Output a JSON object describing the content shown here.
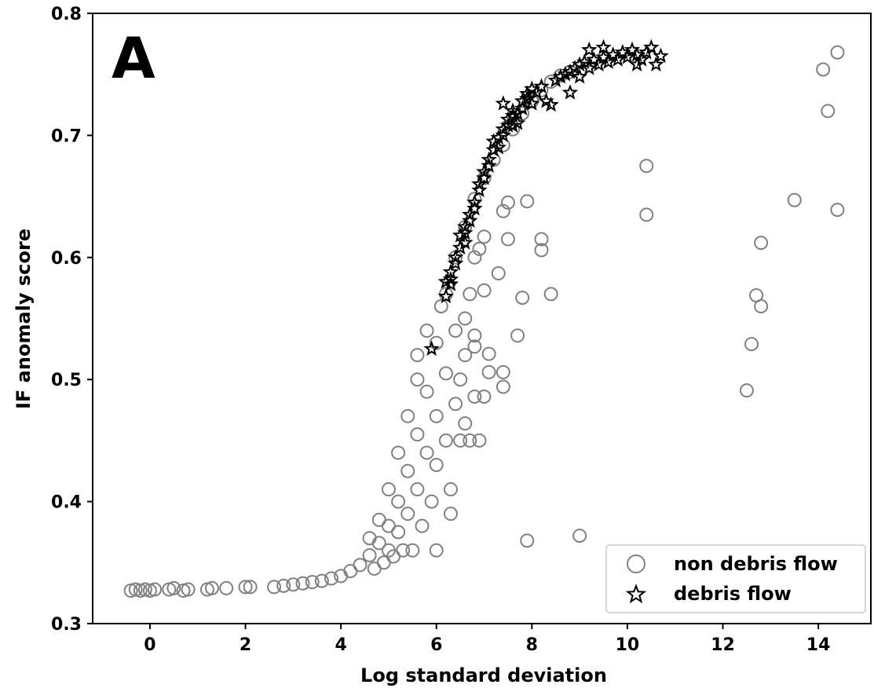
{
  "colors": {
    "non_debris": "#808080",
    "debris": "#000000"
  },
  "chart_data": {
    "type": "scatter",
    "title": "",
    "panel_label": "A",
    "xlabel": "Log standard deviation",
    "ylabel": "IF anomaly score",
    "xlim": [
      -1.2,
      15.1
    ],
    "ylim": [
      0.3,
      0.8
    ],
    "xticks": [
      "0",
      "2",
      "4",
      "6",
      "8",
      "10",
      "12",
      "14"
    ],
    "yticks": [
      "0.3",
      "0.4",
      "0.5",
      "0.6",
      "0.7",
      "0.8"
    ],
    "grid": false,
    "legend_position": "lower-right",
    "legend": [
      "non debris flow",
      "debris flow"
    ],
    "series": [
      {
        "name": "non debris flow",
        "marker": "circle-open",
        "points": [
          [
            -0.4,
            0.327
          ],
          [
            -0.3,
            0.328
          ],
          [
            -0.2,
            0.327
          ],
          [
            -0.1,
            0.328
          ],
          [
            0.0,
            0.327
          ],
          [
            0.1,
            0.328
          ],
          [
            0.4,
            0.328
          ],
          [
            0.5,
            0.329
          ],
          [
            0.7,
            0.327
          ],
          [
            0.8,
            0.328
          ],
          [
            1.2,
            0.328
          ],
          [
            1.3,
            0.329
          ],
          [
            1.6,
            0.329
          ],
          [
            2.0,
            0.33
          ],
          [
            2.1,
            0.33
          ],
          [
            2.6,
            0.33
          ],
          [
            2.8,
            0.331
          ],
          [
            3.0,
            0.332
          ],
          [
            3.2,
            0.333
          ],
          [
            3.4,
            0.334
          ],
          [
            3.6,
            0.335
          ],
          [
            3.8,
            0.337
          ],
          [
            4.0,
            0.339
          ],
          [
            4.2,
            0.343
          ],
          [
            4.4,
            0.348
          ],
          [
            4.6,
            0.356
          ],
          [
            4.8,
            0.366
          ],
          [
            5.0,
            0.38
          ],
          [
            5.2,
            0.4
          ],
          [
            5.4,
            0.425
          ],
          [
            5.6,
            0.455
          ],
          [
            5.8,
            0.49
          ],
          [
            6.0,
            0.53
          ],
          [
            6.2,
            0.57
          ],
          [
            6.4,
            0.6
          ],
          [
            6.6,
            0.625
          ],
          [
            6.8,
            0.648
          ],
          [
            7.0,
            0.665
          ],
          [
            7.2,
            0.68
          ],
          [
            7.4,
            0.692
          ],
          [
            7.6,
            0.705
          ],
          [
            7.8,
            0.718
          ],
          [
            8.0,
            0.728
          ],
          [
            8.2,
            0.737
          ],
          [
            8.4,
            0.744
          ],
          [
            8.6,
            0.749
          ],
          [
            8.8,
            0.752
          ],
          [
            5.0,
            0.36
          ],
          [
            5.2,
            0.375
          ],
          [
            5.4,
            0.39
          ],
          [
            5.6,
            0.41
          ],
          [
            5.8,
            0.44
          ],
          [
            6.0,
            0.47
          ],
          [
            6.2,
            0.505
          ],
          [
            6.4,
            0.54
          ],
          [
            5.6,
            0.5
          ],
          [
            5.4,
            0.47
          ],
          [
            5.2,
            0.44
          ],
          [
            5.0,
            0.41
          ],
          [
            4.8,
            0.385
          ],
          [
            4.6,
            0.37
          ],
          [
            6.0,
            0.43
          ],
          [
            6.2,
            0.45
          ],
          [
            6.4,
            0.48
          ],
          [
            6.6,
            0.52
          ],
          [
            5.8,
            0.54
          ],
          [
            5.6,
            0.52
          ],
          [
            6.1,
            0.56
          ],
          [
            5.9,
            0.4
          ],
          [
            5.7,
            0.38
          ],
          [
            5.5,
            0.36
          ],
          [
            6.3,
            0.41
          ],
          [
            6.5,
            0.45
          ],
          [
            6.5,
            0.5
          ],
          [
            6.6,
            0.55
          ],
          [
            6.7,
            0.57
          ],
          [
            6.8,
            0.6
          ],
          [
            4.7,
            0.345
          ],
          [
            4.9,
            0.35
          ],
          [
            5.1,
            0.355
          ],
          [
            5.3,
            0.36
          ],
          [
            7.4,
            0.638
          ],
          [
            7.5,
            0.645
          ],
          [
            7.5,
            0.615
          ],
          [
            7.3,
            0.587
          ],
          [
            7.0,
            0.573
          ],
          [
            6.9,
            0.607
          ],
          [
            7.0,
            0.617
          ],
          [
            6.8,
            0.536
          ],
          [
            6.8,
            0.527
          ],
          [
            7.1,
            0.521
          ],
          [
            7.1,
            0.506
          ],
          [
            7.4,
            0.506
          ],
          [
            7.4,
            0.494
          ],
          [
            6.8,
            0.486
          ],
          [
            7.0,
            0.486
          ],
          [
            6.6,
            0.464
          ],
          [
            6.7,
            0.45
          ],
          [
            6.9,
            0.45
          ],
          [
            7.7,
            0.536
          ],
          [
            7.8,
            0.567
          ],
          [
            7.9,
            0.646
          ],
          [
            8.2,
            0.615
          ],
          [
            8.2,
            0.606
          ],
          [
            8.4,
            0.57
          ],
          [
            7.9,
            0.368
          ],
          [
            9.0,
            0.372
          ],
          [
            6.3,
            0.39
          ],
          [
            6.0,
            0.36
          ],
          [
            10.4,
            0.675
          ],
          [
            10.4,
            0.635
          ],
          [
            12.5,
            0.491
          ],
          [
            12.6,
            0.529
          ],
          [
            12.7,
            0.569
          ],
          [
            12.8,
            0.56
          ],
          [
            12.8,
            0.612
          ],
          [
            13.5,
            0.647
          ],
          [
            14.1,
            0.754
          ],
          [
            14.2,
            0.72
          ],
          [
            14.4,
            0.768
          ],
          [
            14.4,
            0.639
          ]
        ]
      },
      {
        "name": "debris flow",
        "marker": "star-open",
        "points": [
          [
            5.9,
            0.525
          ],
          [
            6.2,
            0.568
          ],
          [
            6.2,
            0.58
          ],
          [
            6.3,
            0.578
          ],
          [
            6.3,
            0.588
          ],
          [
            6.4,
            0.595
          ],
          [
            6.4,
            0.6
          ],
          [
            6.5,
            0.608
          ],
          [
            6.5,
            0.618
          ],
          [
            6.6,
            0.62
          ],
          [
            6.6,
            0.625
          ],
          [
            6.7,
            0.63
          ],
          [
            6.7,
            0.635
          ],
          [
            6.8,
            0.64
          ],
          [
            6.8,
            0.645
          ],
          [
            6.9,
            0.655
          ],
          [
            6.9,
            0.66
          ],
          [
            7.0,
            0.665
          ],
          [
            7.0,
            0.67
          ],
          [
            7.1,
            0.675
          ],
          [
            7.1,
            0.68
          ],
          [
            7.2,
            0.688
          ],
          [
            7.2,
            0.695
          ],
          [
            7.3,
            0.69
          ],
          [
            7.3,
            0.698
          ],
          [
            7.4,
            0.7
          ],
          [
            7.4,
            0.705
          ],
          [
            7.5,
            0.708
          ],
          [
            7.5,
            0.713
          ],
          [
            7.6,
            0.716
          ],
          [
            7.6,
            0.72
          ],
          [
            7.7,
            0.71
          ],
          [
            7.7,
            0.718
          ],
          [
            7.8,
            0.722
          ],
          [
            7.8,
            0.728
          ],
          [
            7.9,
            0.73
          ],
          [
            7.9,
            0.734
          ],
          [
            8.0,
            0.738
          ],
          [
            8.0,
            0.726
          ],
          [
            8.1,
            0.735
          ],
          [
            8.2,
            0.74
          ],
          [
            8.4,
            0.725
          ],
          [
            8.5,
            0.745
          ],
          [
            8.6,
            0.748
          ],
          [
            8.7,
            0.75
          ],
          [
            8.8,
            0.752
          ],
          [
            8.8,
            0.735
          ],
          [
            8.9,
            0.755
          ],
          [
            9.0,
            0.758
          ],
          [
            9.0,
            0.748
          ],
          [
            9.1,
            0.76
          ],
          [
            9.2,
            0.755
          ],
          [
            9.3,
            0.762
          ],
          [
            9.4,
            0.758
          ],
          [
            9.5,
            0.764
          ],
          [
            9.6,
            0.76
          ],
          [
            9.7,
            0.766
          ],
          [
            9.8,
            0.762
          ],
          [
            9.9,
            0.768
          ],
          [
            10.0,
            0.764
          ],
          [
            10.1,
            0.77
          ],
          [
            10.2,
            0.766
          ],
          [
            10.3,
            0.762
          ],
          [
            10.4,
            0.768
          ],
          [
            10.5,
            0.772
          ],
          [
            10.6,
            0.758
          ],
          [
            10.7,
            0.765
          ],
          [
            9.2,
            0.77
          ],
          [
            9.5,
            0.772
          ],
          [
            10.2,
            0.758
          ],
          [
            7.4,
            0.726
          ],
          [
            7.6,
            0.708
          ],
          [
            8.3,
            0.728
          ],
          [
            6.6,
            0.612
          ],
          [
            6.3,
            0.582
          ]
        ]
      }
    ]
  }
}
